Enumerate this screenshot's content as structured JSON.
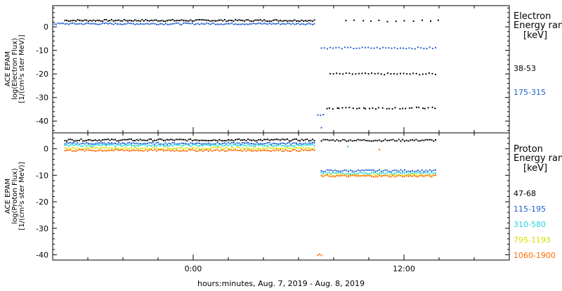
{
  "x_axis": {
    "label": "hours:minutes, Aug.  7, 2019 - Aug.  8, 2019",
    "range_hours": [
      -8,
      18
    ],
    "ticks": [
      {
        "value": 0,
        "label": "0:00"
      },
      {
        "value": 12,
        "label": "12:00"
      }
    ]
  },
  "chart_data": [
    {
      "type": "scatter",
      "ylabel_lines": [
        "ACE EPAM",
        "log(Electron Flux)",
        "[1/(cm²s ster MeV)]"
      ],
      "ylim": [
        -45,
        9
      ],
      "yticks": [
        0,
        -10,
        -20,
        -30,
        -40
      ],
      "legend": {
        "title_lines": [
          "Electron",
          "Energy  range"
        ],
        "unit": "[keV]"
      },
      "series": [
        {
          "name": "38-53",
          "color": "#000000",
          "segments": [
            {
              "x_start": -7.3,
              "x_end": 6.9,
              "y": 2.7,
              "count": 140
            },
            {
              "x_start": 8.7,
              "x_end": 14.0,
              "y": 2.5,
              "count": 12,
              "sparse": true
            },
            {
              "x_start": 7.8,
              "x_end": 13.8,
              "y": -20.0,
              "count": 34
            },
            {
              "x_start": 7.6,
              "x_end": 13.8,
              "y": -34.5,
              "count": 34,
              "sparse": true
            }
          ]
        },
        {
          "name": "175-315",
          "color": "#1f5fd0",
          "segments": [
            {
              "x_start": -7.9,
              "x_end": 6.9,
              "y": 1.3,
              "count": 146
            },
            {
              "x_start": 7.3,
              "x_end": 13.8,
              "y": -9.0,
              "count": 40
            },
            {
              "x_start": 7.1,
              "x_end": 7.4,
              "y": -37.5,
              "count": 3
            },
            {
              "x_start": 7.3,
              "x_end": 7.4,
              "y": -42.5,
              "count": 1
            }
          ]
        }
      ]
    },
    {
      "type": "scatter",
      "ylabel_lines": [
        "ACE EPAM",
        "log(Proton Flux)",
        "[1/(cm²s ster MeV)]"
      ],
      "ylim": [
        -42,
        6
      ],
      "yticks": [
        0,
        -10,
        -20,
        -30,
        -40
      ],
      "legend": {
        "title_lines": [
          "Proton",
          "Energy  range"
        ],
        "unit": "[keV]"
      },
      "series": [
        {
          "name": "47-68",
          "color": "#000000",
          "segments": [
            {
              "x_start": -7.3,
              "x_end": 6.9,
              "y": 3.3,
              "count": 140
            },
            {
              "x_start": 7.3,
              "x_end": 13.8,
              "y": 3.2,
              "count": 60
            }
          ]
        },
        {
          "name": "115-195",
          "color": "#1f5fd0",
          "segments": [
            {
              "x_start": -7.3,
              "x_end": 6.9,
              "y": 2.0,
              "count": 140
            },
            {
              "x_start": 7.3,
              "x_end": 13.8,
              "y": -8.3,
              "count": 60
            }
          ]
        },
        {
          "name": "310-580",
          "color": "#22d0e0",
          "segments": [
            {
              "x_start": -7.3,
              "x_end": 6.9,
              "y": 1.3,
              "count": 140
            },
            {
              "x_start": 7.3,
              "x_end": 13.8,
              "y": -9.2,
              "count": 60
            }
          ]
        },
        {
          "name": "795-1193",
          "color": "#d6e000",
          "segments": [
            {
              "x_start": -7.3,
              "x_end": 6.9,
              "y": 0.2,
              "count": 140
            },
            {
              "x_start": 7.3,
              "x_end": 13.8,
              "y": -9.9,
              "count": 60
            }
          ]
        },
        {
          "name": "1060-1900",
          "color": "#ff6a00",
          "segments": [
            {
              "x_start": -7.3,
              "x_end": 6.9,
              "y": -0.6,
              "count": 140
            },
            {
              "x_start": 7.3,
              "x_end": 13.8,
              "y": -10.3,
              "count": 60
            },
            {
              "x_start": 7.1,
              "x_end": 7.3,
              "y": -40.0,
              "count": 3
            }
          ]
        }
      ],
      "extra_points": [
        {
          "x": 8.8,
          "y": 0.8,
          "color": "#33cc33"
        },
        {
          "x": 10.6,
          "y": -0.3,
          "color": "#ff6a00"
        }
      ]
    }
  ]
}
